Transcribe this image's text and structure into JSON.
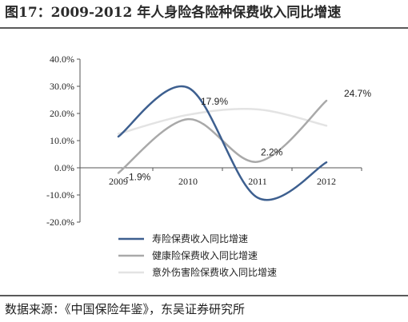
{
  "figure": {
    "title": "图17：2009-2012 年人身险各险种保费收入同比增速",
    "source": "数据来源：《中国保险年鉴》，东吴证券研究所"
  },
  "chart_data": {
    "type": "line",
    "smooth": true,
    "categories": [
      "2009",
      "2010",
      "2011",
      "2012"
    ],
    "ylim": [
      -20,
      40
    ],
    "yticks": [
      "40.0%",
      "30.0%",
      "20.0%",
      "10.0%",
      "0.0%",
      "-10.0%",
      "-20.0%"
    ],
    "ytick_values": [
      40,
      30,
      20,
      10,
      0,
      -10,
      -20
    ],
    "grid": false,
    "legend_position": "bottom",
    "series": [
      {
        "name": "寿险保费收入同比增速",
        "color": "#3d5f8f",
        "values": [
          11.5,
          29.5,
          -11,
          2.0
        ]
      },
      {
        "name": "健康险保费收入同比增速",
        "color": "#a9a9a9",
        "values": [
          -1.9,
          17.9,
          2.2,
          24.7
        ]
      },
      {
        "name": "意外伤害险保费收入同比增速",
        "color": "#e3e3e3",
        "values": [
          12.5,
          19.5,
          21.5,
          15.5
        ]
      }
    ],
    "annotations": [
      {
        "text": "-1.9%",
        "series": 1,
        "index": 0
      },
      {
        "text": "17.9%",
        "series": 1,
        "index": 1
      },
      {
        "text": "2.2%",
        "series": 1,
        "index": 2
      },
      {
        "text": "24.7%",
        "series": 1,
        "index": 3
      }
    ]
  }
}
